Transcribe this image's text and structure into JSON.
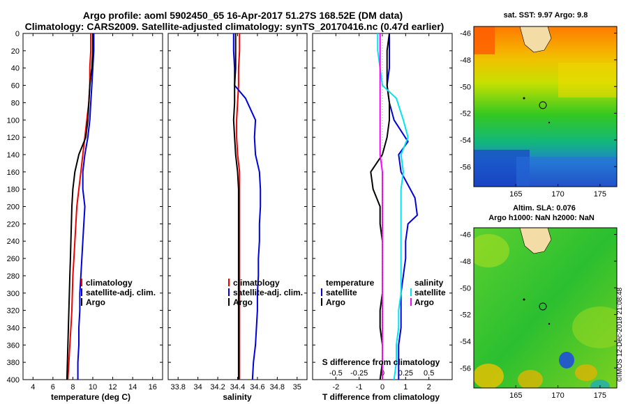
{
  "title": {
    "line1": "Argo profile: aoml 5902450_65 16-Apr-2017 51.27S 168.52E (DM data)",
    "line2": "Climatology: CARS2009. Satellite-adjusted climatology: synTS_20170416.nc (0.47d earlier)"
  },
  "colors": {
    "climatology": "#ee0000",
    "satellite": "#0000dd",
    "argo": "#000000",
    "satellite_s": "#00e5ee",
    "climatology_s": "#ff00ff"
  },
  "watermark": "©IMOS 12-Dec-2018 21:08:48",
  "chart_data": [
    {
      "type": "line",
      "id": "temperature",
      "xlabel": "temperature (deg C)",
      "ylabel": "",
      "xlim": [
        3,
        17
      ],
      "ylim": [
        400,
        0
      ],
      "xticks": [
        "4",
        "6",
        "8",
        "10",
        "12",
        "14",
        "16"
      ],
      "xtick_values": [
        4,
        6,
        8,
        10,
        12,
        14,
        16
      ],
      "yticks": [
        "0",
        "20",
        "40",
        "60",
        "80",
        "100",
        "120",
        "140",
        "160",
        "180",
        "200",
        "220",
        "240",
        "260",
        "280",
        "300",
        "320",
        "340",
        "360",
        "380",
        "400"
      ],
      "ytick_values": [
        0,
        20,
        40,
        60,
        80,
        100,
        120,
        140,
        160,
        180,
        200,
        220,
        240,
        260,
        280,
        300,
        320,
        340,
        360,
        380,
        400
      ],
      "legend": [
        "climatology",
        "satellite-adj. clim.",
        "Argo"
      ],
      "series": [
        {
          "name": "climatology",
          "color": "#ee0000",
          "x": [
            9.8,
            9.8,
            9.7,
            9.7,
            9.6,
            9.4,
            9.2,
            9.0,
            8.8,
            8.6,
            8.4,
            8.3,
            8.2,
            8.1,
            8.0,
            7.95,
            7.9,
            7.8,
            7.7,
            7.6,
            7.5
          ],
          "y": [
            0,
            20,
            40,
            60,
            80,
            100,
            120,
            140,
            160,
            180,
            200,
            220,
            240,
            260,
            280,
            300,
            320,
            340,
            360,
            380,
            400
          ]
        },
        {
          "name": "satellite-adj. clim.",
          "color": "#0000dd",
          "x": [
            10.1,
            10.1,
            10.0,
            9.9,
            9.8,
            9.7,
            9.5,
            9.2,
            9.0,
            9.0,
            9.2,
            9.1,
            9.0,
            8.9,
            8.8,
            8.7,
            8.7,
            8.6,
            8.6,
            8.5,
            8.5
          ],
          "y": [
            0,
            20,
            40,
            60,
            80,
            100,
            120,
            140,
            160,
            180,
            200,
            220,
            240,
            260,
            280,
            300,
            320,
            340,
            360,
            380,
            400
          ]
        },
        {
          "name": "Argo",
          "color": "#000000",
          "x": [
            10.0,
            10.0,
            9.9,
            9.7,
            9.6,
            9.5,
            9.3,
            8.6,
            8.2,
            8.0,
            7.9,
            7.85,
            7.8,
            7.75,
            7.7,
            7.65,
            7.6,
            7.55,
            7.5,
            7.45,
            7.4
          ],
          "y": [
            0,
            20,
            40,
            60,
            80,
            100,
            120,
            140,
            160,
            180,
            200,
            220,
            240,
            260,
            280,
            300,
            320,
            340,
            360,
            380,
            400
          ]
        }
      ]
    },
    {
      "type": "line",
      "id": "salinity",
      "xlabel": "salinity",
      "ylabel": "",
      "xlim": [
        33.7,
        35.1
      ],
      "ylim": [
        400,
        0
      ],
      "xticks": [
        "33.8",
        "34",
        "34.2",
        "34.4",
        "34.6",
        "34.8",
        "35"
      ],
      "xtick_values": [
        33.8,
        34.0,
        34.2,
        34.4,
        34.6,
        34.8,
        35.0
      ],
      "legend": [
        "climatology",
        "satellite-adj. clim.",
        "Argo"
      ],
      "series": [
        {
          "name": "climatology",
          "color": "#ee0000",
          "x": [
            34.42,
            34.42,
            34.41,
            34.41,
            34.4,
            34.39,
            34.39,
            34.4,
            34.42,
            34.42,
            34.42,
            34.42,
            34.42,
            34.42,
            34.42,
            34.42,
            34.42,
            34.42,
            34.42,
            34.42,
            34.42
          ],
          "y": [
            0,
            20,
            40,
            60,
            80,
            100,
            120,
            140,
            160,
            180,
            200,
            220,
            240,
            260,
            280,
            300,
            320,
            340,
            360,
            380,
            400
          ]
        },
        {
          "name": "satellite-adj. clim.",
          "color": "#0000dd",
          "x": [
            34.36,
            34.36,
            34.37,
            34.37,
            34.48,
            34.58,
            34.57,
            34.58,
            34.62,
            34.63,
            34.63,
            34.62,
            34.62,
            34.61,
            34.61,
            34.6,
            34.6,
            34.59,
            34.58,
            34.56,
            34.55
          ],
          "y": [
            0,
            20,
            40,
            60,
            75,
            100,
            120,
            140,
            160,
            180,
            200,
            220,
            240,
            260,
            280,
            300,
            320,
            340,
            360,
            380,
            400
          ]
        },
        {
          "name": "Argo",
          "color": "#000000",
          "x": [
            34.38,
            34.38,
            34.38,
            34.37,
            34.37,
            34.36,
            34.37,
            34.38,
            34.4,
            34.41,
            34.41,
            34.41,
            34.41,
            34.41,
            34.41,
            34.41,
            34.41,
            34.41,
            34.41,
            34.41,
            34.41
          ],
          "y": [
            0,
            20,
            40,
            60,
            80,
            100,
            120,
            140,
            160,
            180,
            200,
            220,
            240,
            260,
            280,
            300,
            320,
            340,
            360,
            380,
            400
          ]
        }
      ]
    },
    {
      "type": "line",
      "id": "difference",
      "xlabel": "T difference from climatology",
      "xlabel2": "S difference from climatology",
      "xlim": [
        -3,
        3
      ],
      "ylim": [
        400,
        0
      ],
      "xticks": [
        "-2",
        "-1",
        "0",
        "1",
        "2"
      ],
      "xtick_values": [
        -2,
        -1,
        0,
        1,
        2
      ],
      "xticks2": [
        "-0.5",
        "-0.25",
        "0",
        "0.25",
        "0.5"
      ],
      "xtick2_values": [
        -2,
        -1,
        0,
        1,
        2
      ],
      "legend_temperature": {
        "title": "temperature",
        "items": [
          "satellite",
          "Argo"
        ]
      },
      "legend_salinity": {
        "title": "salinity",
        "items": [
          "satellite",
          "Argo"
        ]
      },
      "series": [
        {
          "name": "T satellite",
          "color": "#0000dd",
          "x": [
            0.3,
            0.3,
            0.3,
            0.2,
            0.3,
            0.5,
            1.1,
            0.7,
            0.8,
            1.4,
            1.5,
            1.1,
            1.0,
            1.0,
            0.9,
            0.8,
            0.8,
            0.8,
            0.7,
            0.7,
            0.7
          ],
          "y": [
            0,
            20,
            40,
            60,
            80,
            100,
            125,
            140,
            160,
            190,
            210,
            220,
            240,
            260,
            280,
            300,
            320,
            340,
            360,
            380,
            400
          ]
        },
        {
          "name": "T Argo",
          "color": "#000000",
          "x": [
            0.3,
            0.2,
            0.2,
            0.2,
            0.3,
            0.3,
            0.2,
            0.0,
            -0.5,
            -0.4,
            -0.1,
            -0.1,
            0.0,
            0.0,
            0.0,
            0.0,
            -0.1,
            -0.1,
            0.0,
            0.0,
            -0.1
          ],
          "y": [
            0,
            20,
            40,
            60,
            80,
            100,
            120,
            140,
            160,
            180,
            200,
            220,
            240,
            260,
            280,
            300,
            320,
            340,
            360,
            380,
            400
          ]
        },
        {
          "name": "S satellite",
          "color": "#00e5ee",
          "x": [
            -0.2,
            -0.2,
            -0.1,
            0.0,
            0.6,
            0.9,
            1.1,
            0.8,
            0.9,
            0.8,
            0.8,
            0.8,
            0.8,
            0.8,
            0.8,
            0.8,
            0.7,
            0.7,
            0.6,
            0.6,
            0.5
          ],
          "y": [
            0,
            20,
            40,
            60,
            75,
            100,
            120,
            140,
            160,
            180,
            200,
            220,
            240,
            260,
            280,
            300,
            320,
            340,
            360,
            380,
            400
          ]
        },
        {
          "name": "S Argo",
          "color": "#ff00ff",
          "x": [
            -0.1,
            -0.1,
            -0.1,
            -0.1,
            -0.1,
            -0.1,
            -0.1,
            -0.1,
            0.0,
            0.0,
            0.0,
            0.0,
            0.0,
            0.0,
            0.0,
            0.0,
            0.0,
            0.0,
            0.0,
            0.0,
            0.0
          ],
          "y": [
            0,
            20,
            40,
            60,
            80,
            100,
            120,
            140,
            160,
            180,
            200,
            220,
            240,
            260,
            280,
            300,
            320,
            340,
            360,
            380,
            400
          ]
        }
      ]
    },
    {
      "type": "heatmap",
      "id": "sst-map",
      "title": "sat. SST: 9.97 Argo: 9.8",
      "xticks": [
        "165",
        "170",
        "175"
      ],
      "xtick_values": [
        165,
        170,
        175
      ],
      "yticks": [
        "-46",
        "-48",
        "-50",
        "-52",
        "-54",
        "-56"
      ],
      "ytick_values": [
        -46,
        -48,
        -50,
        -52,
        -54,
        -56
      ],
      "xlim": [
        160,
        177
      ],
      "ylim": [
        -57.5,
        -45.5
      ],
      "argo_position": [
        168.52,
        -51.27
      ]
    },
    {
      "type": "heatmap",
      "id": "sla-map",
      "title": "Altim. SLA: 0.076",
      "subtitle": "Argo h1000: NaN h2000: NaN",
      "xticks": [
        "165",
        "170",
        "175"
      ],
      "xtick_values": [
        165,
        170,
        175
      ],
      "yticks": [
        "-46",
        "-48",
        "-50",
        "-52",
        "-54",
        "-56"
      ],
      "ytick_values": [
        -46,
        -48,
        -50,
        -52,
        -54,
        -56
      ],
      "xlim": [
        160,
        177
      ],
      "ylim": [
        -57.5,
        -45.5
      ],
      "argo_position": [
        168.52,
        -51.27
      ]
    }
  ]
}
